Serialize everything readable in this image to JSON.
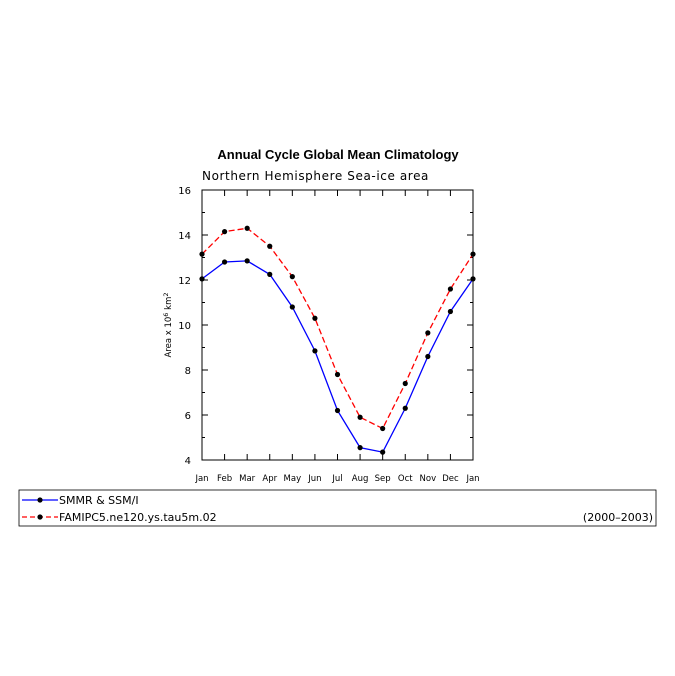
{
  "chart_data": {
    "type": "line",
    "title": "Annual Cycle Global Mean Climatology",
    "subtitle": "Northern Hemisphere Sea-ice area",
    "ylabel": {
      "prefix": "Area x 10",
      "exponent": "6",
      "unit": " km",
      "unit_exponent": "2"
    },
    "xlabel": "",
    "categories": [
      "Jan",
      "Feb",
      "Mar",
      "Apr",
      "May",
      "Jun",
      "Jul",
      "Aug",
      "Sep",
      "Oct",
      "Nov",
      "Dec",
      "Jan"
    ],
    "ylim": [
      4,
      16
    ],
    "yticks": [
      4,
      6,
      8,
      10,
      12,
      14,
      16
    ],
    "grid": false,
    "legend_position": "bottom",
    "series": [
      {
        "name": "SMMR & SSM/I",
        "color": "#0000ff",
        "dash": "solid",
        "values": [
          12.05,
          12.8,
          12.85,
          12.25,
          10.8,
          8.85,
          6.2,
          4.55,
          4.35,
          6.3,
          8.6,
          10.6,
          12.05
        ]
      },
      {
        "name": "FAMIPC5.ne120.ys.tau5m.02",
        "color": "#ff0000",
        "dash": "dashed",
        "values": [
          13.15,
          14.15,
          14.3,
          13.5,
          12.15,
          10.3,
          7.8,
          5.9,
          5.4,
          7.4,
          9.65,
          11.6,
          13.15
        ]
      }
    ],
    "legend": {
      "period": "(2000–2003)"
    }
  }
}
